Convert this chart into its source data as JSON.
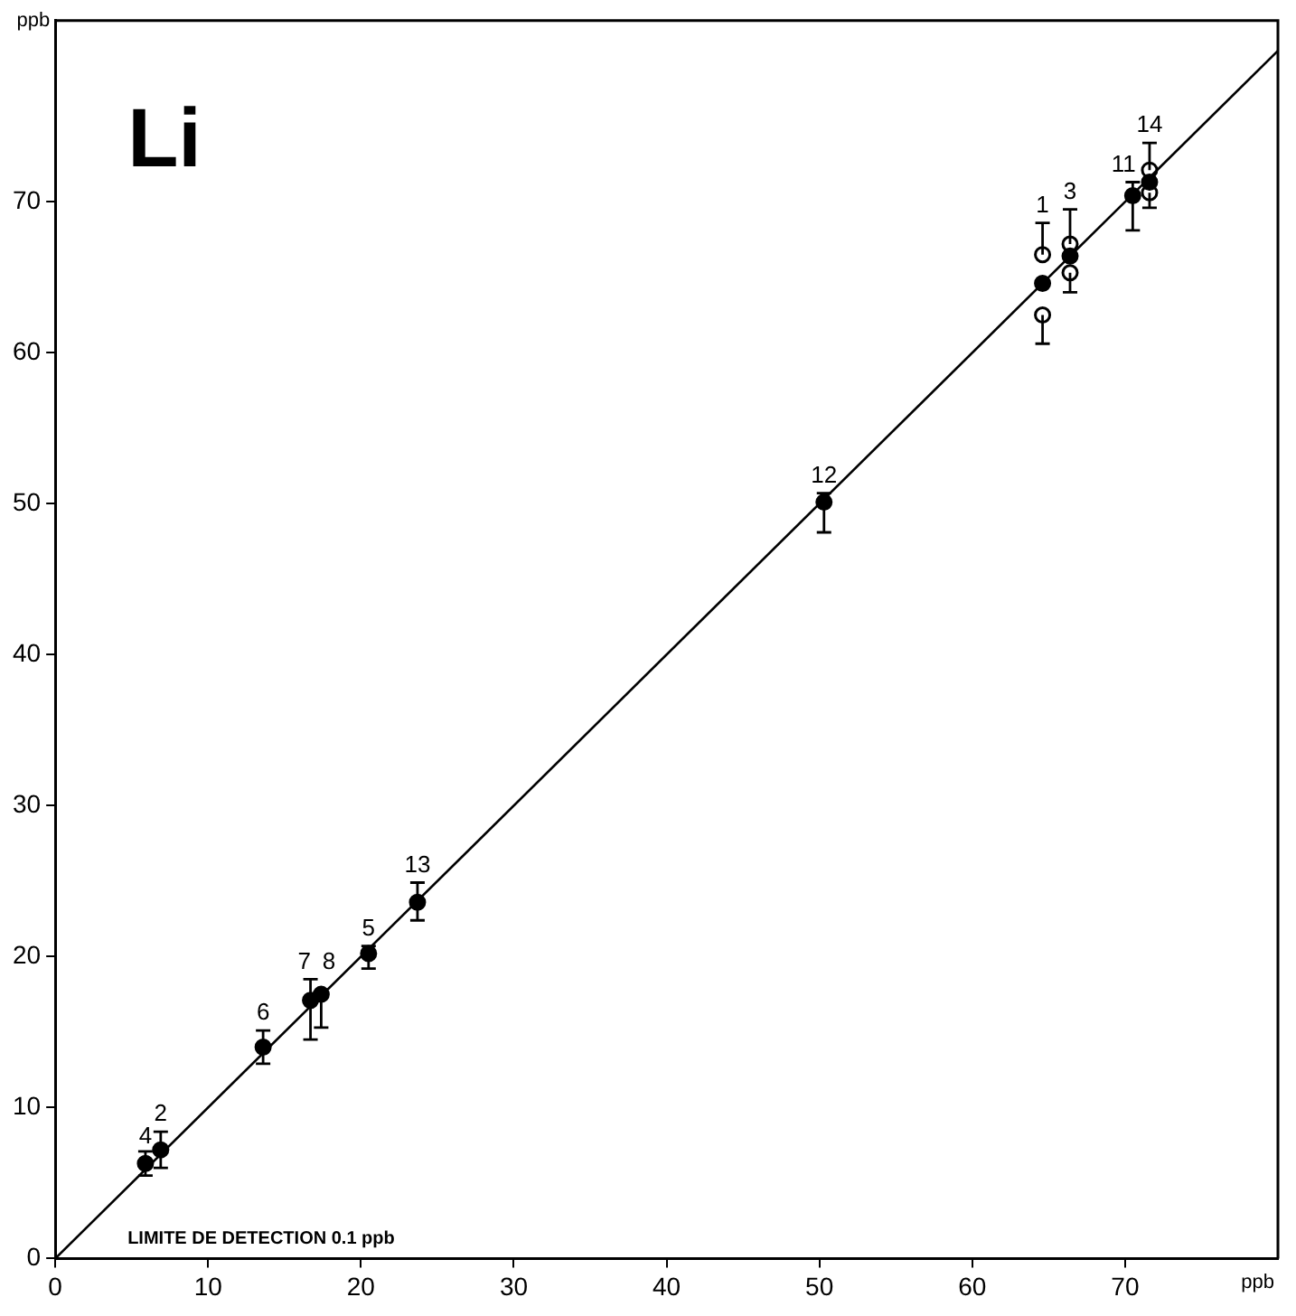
{
  "chart_data": {
    "type": "scatter",
    "title": "Li",
    "xlabel": "ppb",
    "ylabel": "ppb",
    "xlim": [
      0,
      80
    ],
    "ylim": [
      0,
      82
    ],
    "xticks": [
      0,
      10,
      20,
      30,
      40,
      50,
      60,
      70
    ],
    "yticks": [
      0,
      10,
      20,
      30,
      40,
      50,
      60,
      70
    ],
    "grid": false,
    "legend": false,
    "marker": "circle",
    "series": [
      {
        "type": "line",
        "color": "#000000",
        "x": [
          0,
          80
        ],
        "values": [
          0,
          80
        ],
        "marker": "none"
      },
      {
        "color": "#000000",
        "x": [
          5.9,
          6.9,
          13.6,
          16.7,
          17.4,
          20.5,
          23.7,
          50.3,
          64.6,
          66.4,
          70.5,
          71.6
        ],
        "values": [
          6.3,
          7.2,
          14.0,
          17.1,
          17.5,
          20.2,
          23.6,
          50.1,
          64.6,
          66.4,
          70.4,
          71.3
        ],
        "errors": [
          0.8,
          1.2,
          1.1,
          [
            14.5,
            18.5
          ],
          [
            15.3,
            17.5
          ],
          [
            19.2,
            20.7
          ],
          [
            22.4,
            24.9
          ],
          [
            48.1,
            50.7
          ],
          null,
          null,
          [
            68.1,
            71.3
          ],
          null
        ]
      },
      {
        "color": "#000000",
        "x": [
          64.6,
          64.6,
          66.4,
          66.4,
          71.6,
          71.6
        ],
        "values": [
          66.5,
          62.5,
          67.2,
          65.3,
          72.1,
          70.6
        ],
        "errors": [
          [
            66.5,
            68.6
          ],
          [
            60.6,
            62.5
          ],
          [
            67.2,
            69.5
          ],
          [
            64.0,
            65.3
          ],
          [
            72.1,
            73.9
          ],
          [
            69.6,
            70.6
          ]
        ]
      }
    ],
    "annotations": [
      "LIMITE DE DETECTION 0.1 ppb",
      {
        "text": "4",
        "x": 5.9,
        "y": 6.9
      },
      {
        "text": "2",
        "x": 6.9,
        "y": 8.4
      },
      {
        "text": "6",
        "x": 13.6,
        "y": 15.1
      },
      {
        "text": "7",
        "x": 16.3,
        "y": 18.5
      },
      {
        "text": "8",
        "x": 17.9,
        "y": 18.5
      },
      {
        "text": "5",
        "x": 20.5,
        "y": 20.7
      },
      {
        "text": "13",
        "x": 23.7,
        "y": 24.9
      },
      {
        "text": "12",
        "x": 50.3,
        "y": 50.7
      },
      {
        "text": "1",
        "x": 64.6,
        "y": 68.6
      },
      {
        "text": "3",
        "x": 66.4,
        "y": 69.5
      },
      {
        "text": "11",
        "x": 69.9,
        "y": 71.3
      },
      {
        "text": "14",
        "x": 71.6,
        "y": 73.9
      }
    ]
  }
}
